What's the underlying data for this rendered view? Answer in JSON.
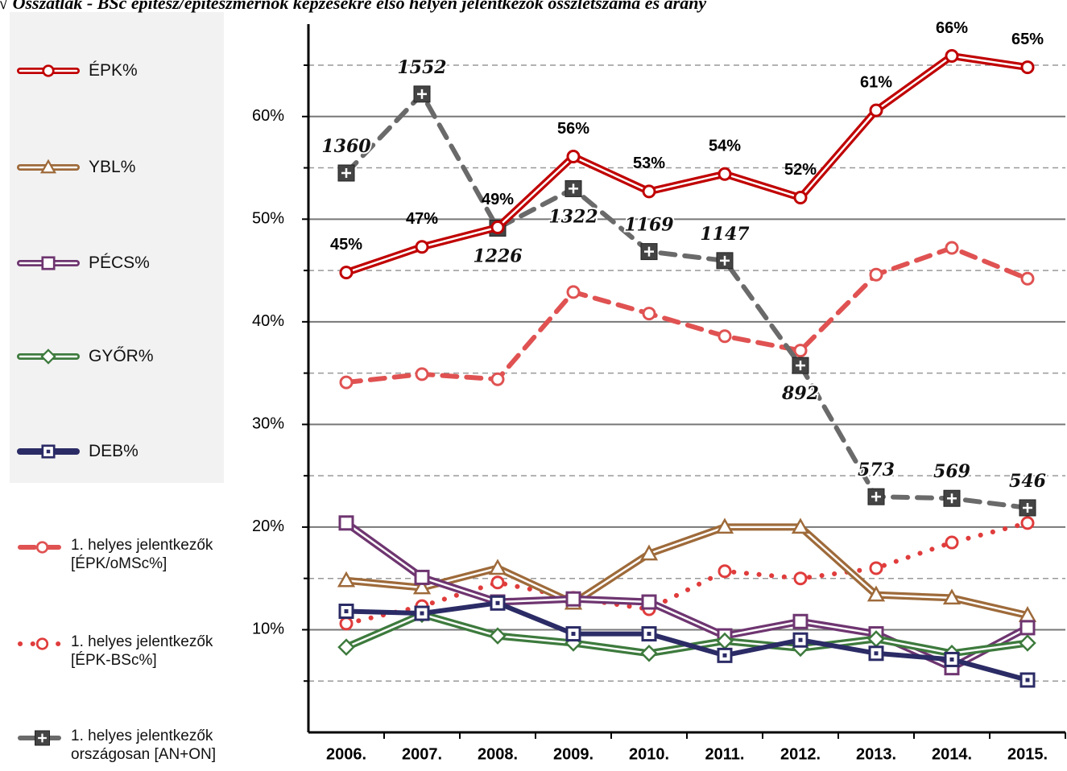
{
  "chart_data": {
    "type": "line",
    "title": "√ Összátlak - BSc építész/építészmérnök képzésekre első helyen jelentkezők összlétszáma és arány",
    "categories": [
      "2006.",
      "2007.",
      "2008.",
      "2009.",
      "2010.",
      "2011.",
      "2012.",
      "2013.",
      "2014.",
      "2015."
    ],
    "ylim": [
      0,
      69
    ],
    "yticks": [
      {
        "value": 10,
        "label": "10%"
      },
      {
        "value": 20,
        "label": "20%"
      },
      {
        "value": 30,
        "label": "30%"
      },
      {
        "value": 40,
        "label": "40%"
      },
      {
        "value": 50,
        "label": "50%"
      },
      {
        "value": 60,
        "label": "60%"
      }
    ],
    "minor_yticks": [
      5,
      15,
      25,
      35,
      45,
      55,
      65
    ],
    "y2lim": [
      0,
      1722
    ],
    "grid": true,
    "series": [
      {
        "name": "1. helyes jelentkezők [ÉPK/oMSc%]",
        "color": "#e05252",
        "style": "dashed",
        "marker": "circle",
        "values": [
          34.1,
          34.9,
          34.4,
          42.9,
          40.8,
          38.6,
          37.2,
          44.6,
          47.2,
          44.2
        ]
      },
      {
        "name": "1. helyes jelentkezők [ÉPK-BSc%]",
        "color": "#e03c3c",
        "style": "dotted",
        "marker": "circle",
        "values": [
          10.6,
          12.3,
          14.6,
          13.1,
          12.0,
          15.7,
          15.0,
          16.0,
          18.5,
          20.4
        ]
      },
      {
        "name": "YBL%",
        "color": "#9e6a3a",
        "style": "double",
        "marker": "triangle",
        "values": [
          14.8,
          14.1,
          16.0,
          12.6,
          17.4,
          20.0,
          20.0,
          13.4,
          13.1,
          11.4
        ]
      },
      {
        "name": "PÉCS%",
        "color": "#6e3570",
        "style": "double",
        "marker": "square",
        "values": [
          20.4,
          15.1,
          12.7,
          13.0,
          12.7,
          9.4,
          10.8,
          9.6,
          6.3,
          10.2
        ]
      },
      {
        "name": "GYŐR%",
        "color": "#3d7a3d",
        "style": "double",
        "marker": "diamond",
        "values": [
          8.3,
          11.5,
          9.4,
          8.7,
          7.7,
          8.9,
          8.2,
          9.1,
          7.7,
          8.7
        ]
      },
      {
        "name": "DEB%",
        "color": "#2b2b66",
        "style": "solid",
        "marker": "dotsquare",
        "values": [
          11.8,
          11.6,
          12.6,
          9.6,
          9.6,
          7.5,
          9.0,
          7.7,
          7.1,
          5.1
        ]
      },
      {
        "name": "1. helyes jelentkezők országosan [AN+ON]",
        "color": "#6a6a6a",
        "style": "dashed",
        "marker": "plussquare",
        "axis": "y2",
        "values": [
          1360,
          1552,
          1226,
          1322,
          1169,
          1147,
          892,
          573,
          569,
          546
        ]
      },
      {
        "name": "ÉPK%",
        "color": "#c00000",
        "style": "double",
        "marker": "circle",
        "values": [
          44.8,
          47.3,
          49.2,
          56.1,
          52.7,
          54.4,
          52.1,
          60.6,
          65.9,
          64.8
        ],
        "value_labels": [
          "45%",
          "47%",
          "49%",
          "56%",
          "53%",
          "54%",
          "52%",
          "61%",
          "66%",
          "65%"
        ]
      }
    ]
  }
}
